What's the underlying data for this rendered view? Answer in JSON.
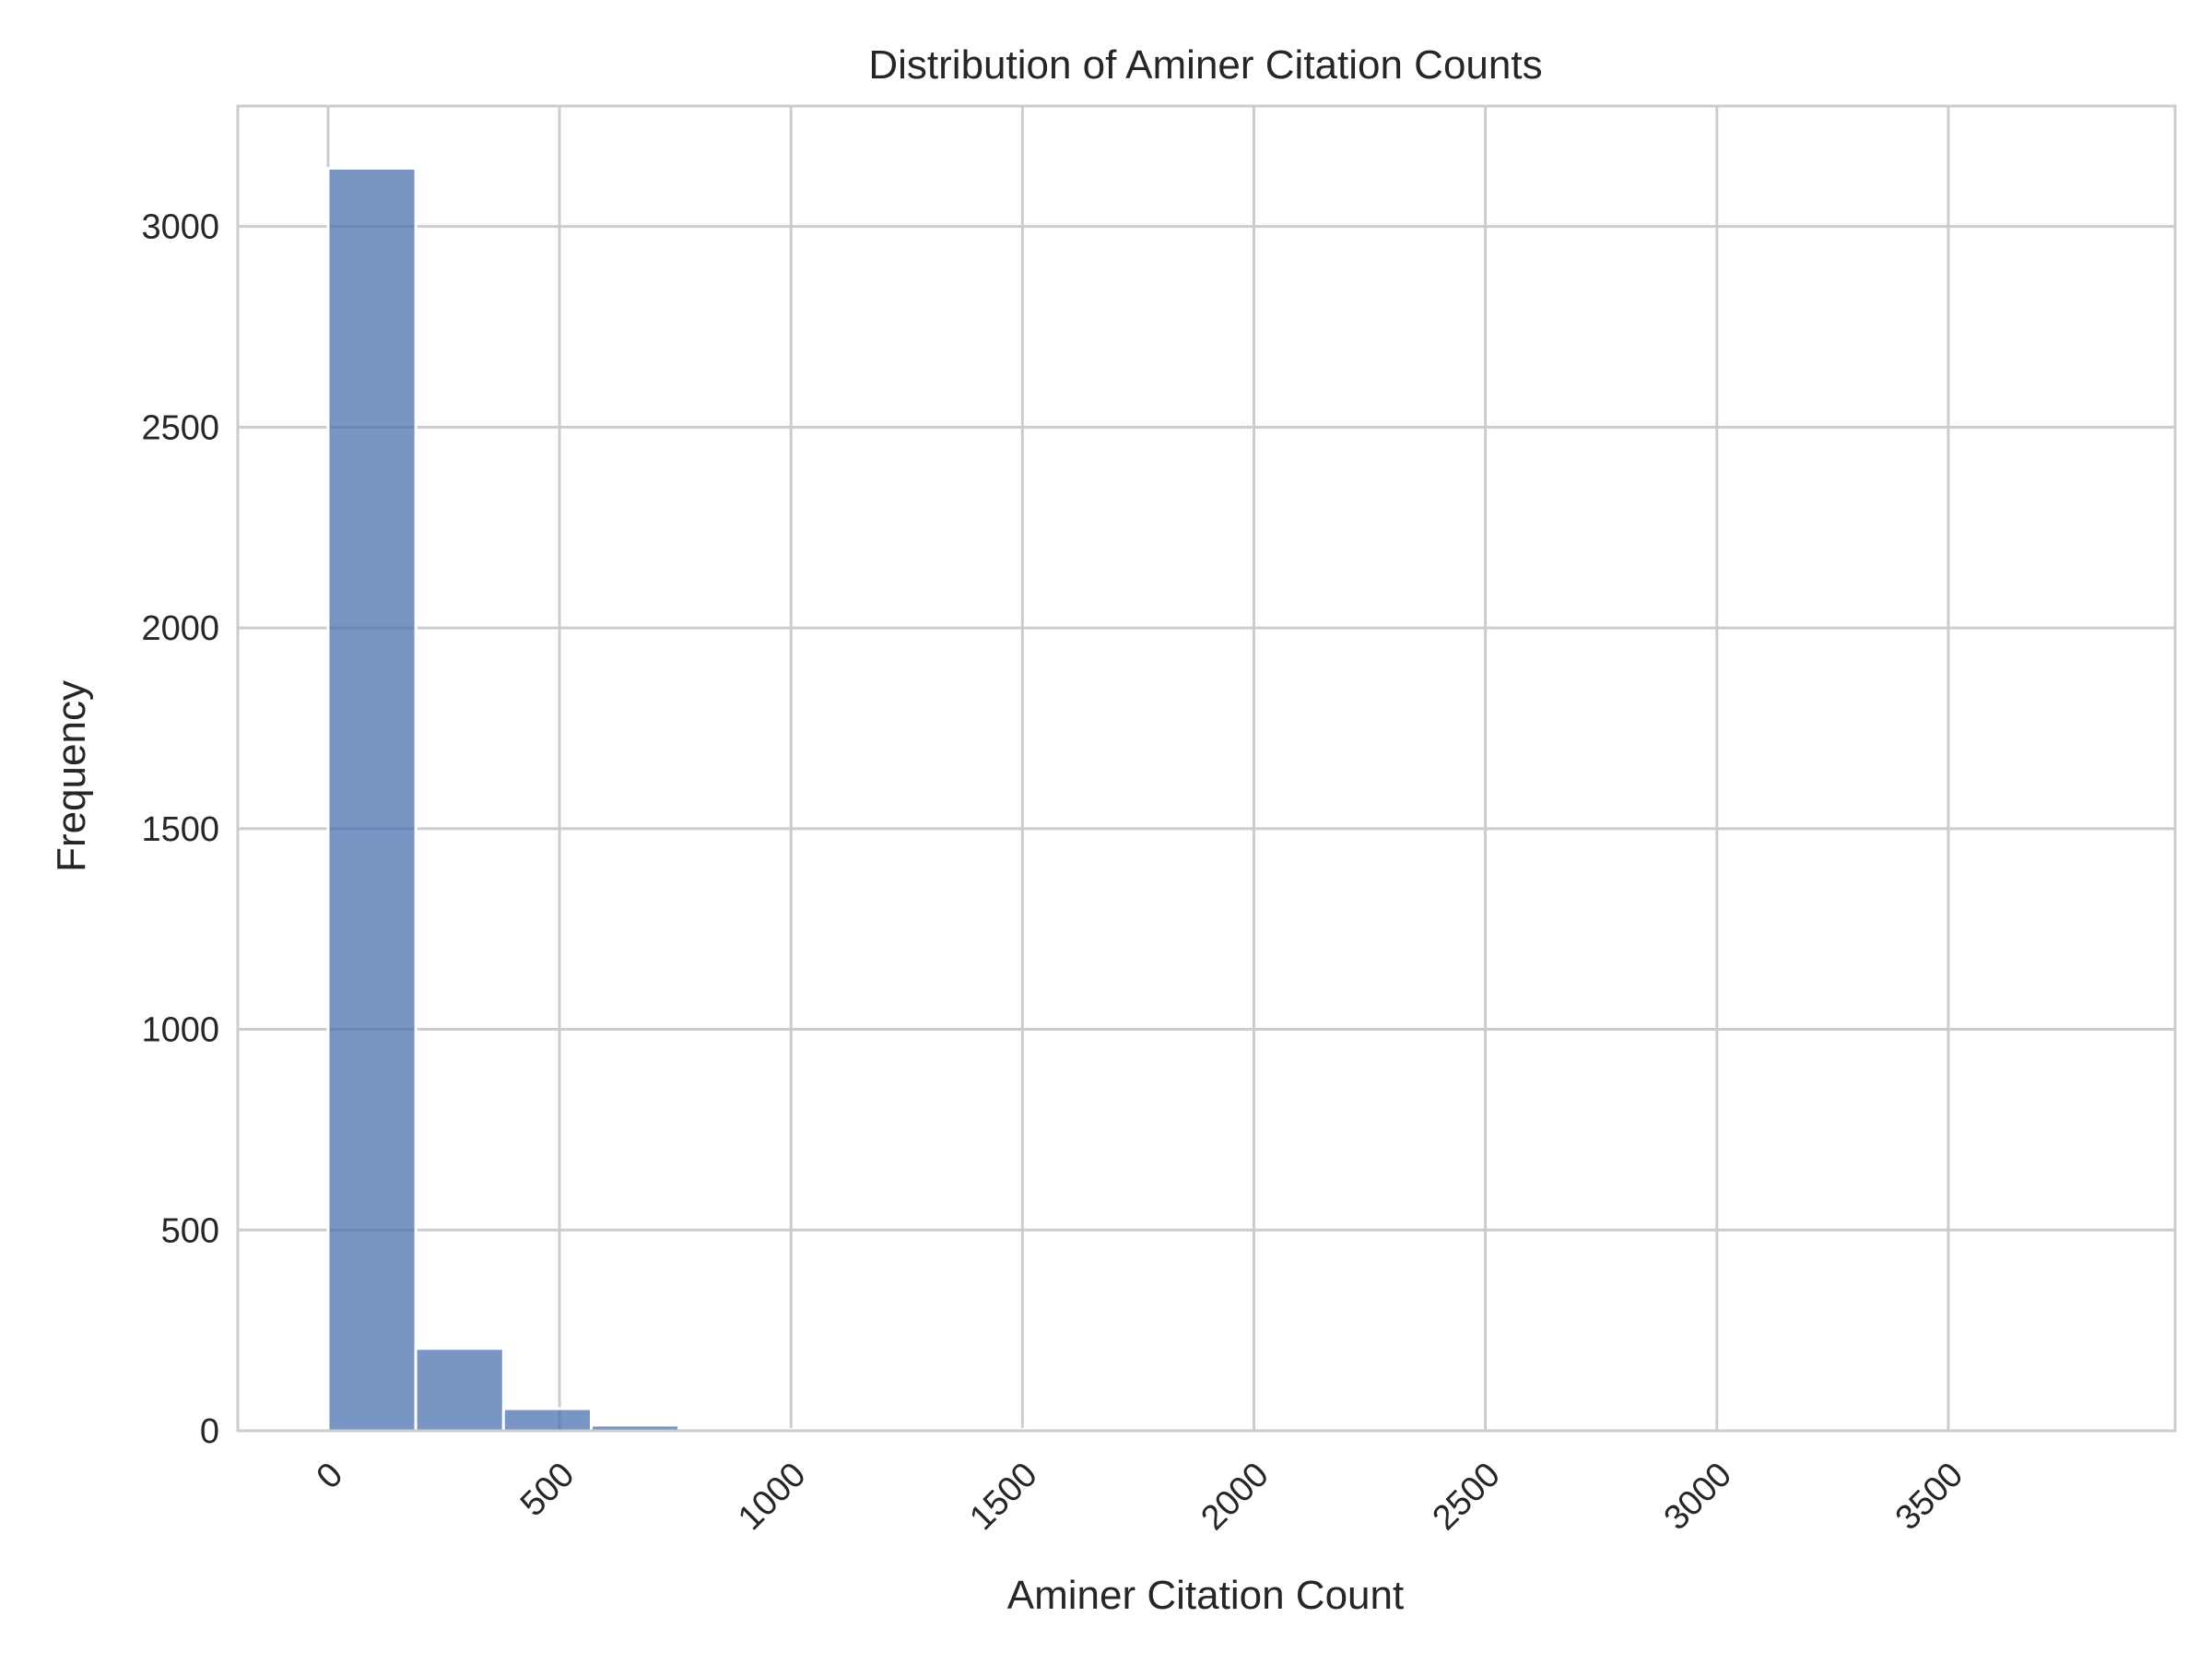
{
  "chart_data": {
    "type": "bar",
    "title": "Distribution of Aminer Citation Counts",
    "xlabel": "Aminer Citation Count",
    "ylabel": "Frequency",
    "xlim": [
      -195,
      3990
    ],
    "ylim": [
      0,
      3300
    ],
    "x_ticks": [
      0,
      500,
      1000,
      1500,
      2000,
      2500,
      3000,
      3500
    ],
    "x_tick_labels": [
      "0",
      "500",
      "1000",
      "1500",
      "2000",
      "2500",
      "3000",
      "3500"
    ],
    "y_ticks": [
      0,
      500,
      1000,
      1500,
      2000,
      2500,
      3000
    ],
    "y_tick_labels": [
      "0",
      "500",
      "1000",
      "1500",
      "2000",
      "2500",
      "3000"
    ],
    "bin_edges": [
      0,
      189.5,
      379,
      568.5,
      758,
      947.5,
      1137,
      1326.5,
      1516,
      1705.5,
      1895,
      2084.5,
      2274,
      2463.5,
      2653,
      2842.5,
      3032,
      3221.5,
      3411,
      3600.5,
      3790
    ],
    "values": [
      3145,
      205,
      55,
      14,
      4,
      2,
      1,
      1,
      1,
      0,
      0,
      0,
      0,
      0,
      0,
      0,
      0,
      0,
      0,
      1
    ],
    "grid": true,
    "bar_color": "#4c72b0",
    "grid_color": "#cccccc"
  }
}
